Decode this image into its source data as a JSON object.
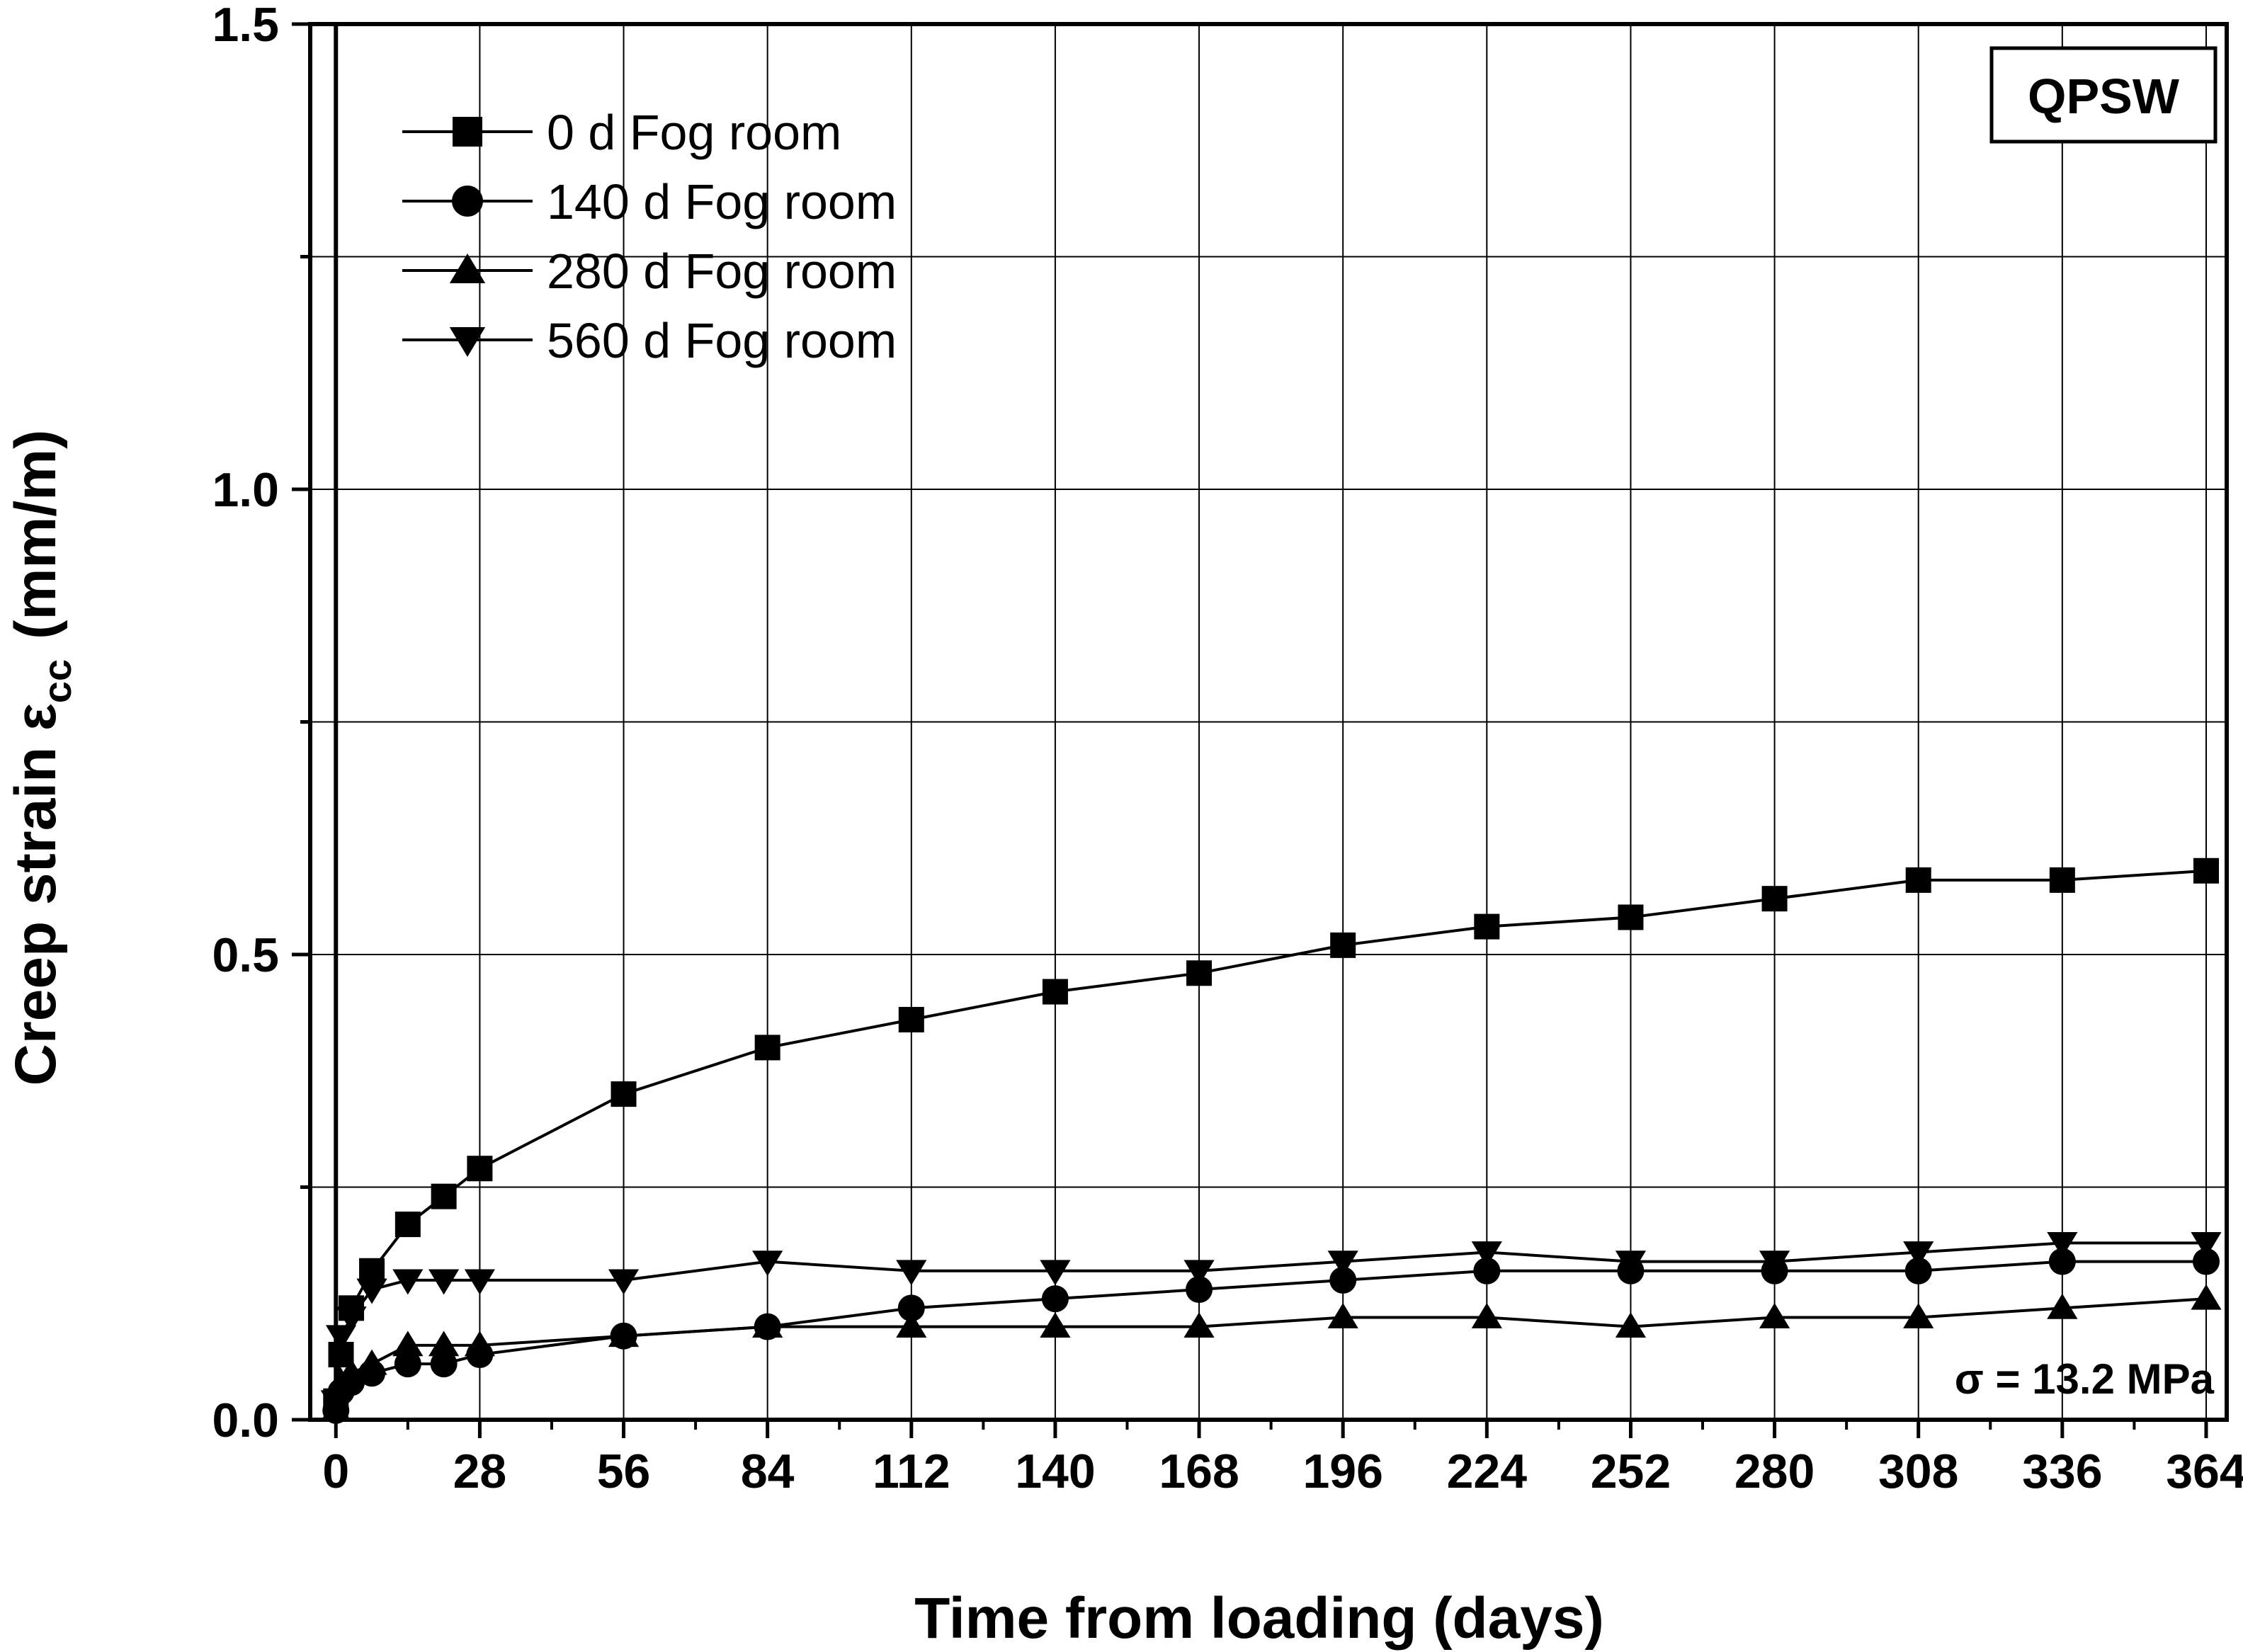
{
  "chart_data": {
    "type": "line",
    "xlabel": "Time from loading (days)",
    "ylabel": "Creep strain ε",
    "ylabel_sub": "cc",
    "ylabel_unit": "(mm/m)",
    "xlim": [
      -5,
      368
    ],
    "ylim": [
      0.0,
      1.5
    ],
    "x_ticks": [
      0,
      28,
      56,
      84,
      112,
      140,
      168,
      196,
      224,
      252,
      280,
      308,
      336,
      364
    ],
    "y_ticks": [
      0.0,
      0.5,
      1.0,
      1.5
    ],
    "y_tick_labels": [
      "0.0",
      "0.5",
      "1.0",
      "1.5"
    ],
    "grid": true,
    "legend_position": "top-left",
    "tag": "QPSW",
    "annotation": "σ = 13.2 MPa",
    "series": [
      {
        "name": "0 d Fog room",
        "marker": "square",
        "points": [
          [
            0,
            0.02
          ],
          [
            1,
            0.07
          ],
          [
            3,
            0.12
          ],
          [
            7,
            0.16
          ],
          [
            14,
            0.21
          ],
          [
            21,
            0.24
          ],
          [
            28,
            0.27
          ],
          [
            56,
            0.35
          ],
          [
            84,
            0.4
          ],
          [
            112,
            0.43
          ],
          [
            140,
            0.46
          ],
          [
            168,
            0.48
          ],
          [
            196,
            0.51
          ],
          [
            224,
            0.53
          ],
          [
            252,
            0.54
          ],
          [
            280,
            0.56
          ],
          [
            308,
            0.58
          ],
          [
            336,
            0.58
          ],
          [
            364,
            0.59
          ]
        ]
      },
      {
        "name": "140 d Fog room",
        "marker": "circle",
        "points": [
          [
            0,
            0.01
          ],
          [
            1,
            0.03
          ],
          [
            3,
            0.04
          ],
          [
            7,
            0.05
          ],
          [
            14,
            0.06
          ],
          [
            21,
            0.06
          ],
          [
            28,
            0.07
          ],
          [
            56,
            0.09
          ],
          [
            84,
            0.1
          ],
          [
            112,
            0.12
          ],
          [
            140,
            0.13
          ],
          [
            168,
            0.14
          ],
          [
            196,
            0.15
          ],
          [
            224,
            0.16
          ],
          [
            252,
            0.16
          ],
          [
            280,
            0.16
          ],
          [
            308,
            0.16
          ],
          [
            336,
            0.17
          ],
          [
            364,
            0.17
          ]
        ]
      },
      {
        "name": "280 d Fog room",
        "marker": "triangle-up",
        "points": [
          [
            0,
            0.01
          ],
          [
            1,
            0.04
          ],
          [
            3,
            0.05
          ],
          [
            7,
            0.06
          ],
          [
            14,
            0.08
          ],
          [
            21,
            0.08
          ],
          [
            28,
            0.08
          ],
          [
            56,
            0.09
          ],
          [
            84,
            0.1
          ],
          [
            112,
            0.1
          ],
          [
            140,
            0.1
          ],
          [
            168,
            0.1
          ],
          [
            196,
            0.11
          ],
          [
            224,
            0.11
          ],
          [
            252,
            0.1
          ],
          [
            280,
            0.11
          ],
          [
            308,
            0.11
          ],
          [
            336,
            0.12
          ],
          [
            364,
            0.13
          ]
        ]
      },
      {
        "name": "560 d Fog room",
        "marker": "triangle-down",
        "points": [
          [
            0,
            0.02
          ],
          [
            1,
            0.09
          ],
          [
            3,
            0.11
          ],
          [
            7,
            0.14
          ],
          [
            14,
            0.15
          ],
          [
            21,
            0.15
          ],
          [
            28,
            0.15
          ],
          [
            56,
            0.15
          ],
          [
            84,
            0.17
          ],
          [
            112,
            0.16
          ],
          [
            140,
            0.16
          ],
          [
            168,
            0.16
          ],
          [
            196,
            0.17
          ],
          [
            224,
            0.18
          ],
          [
            252,
            0.17
          ],
          [
            280,
            0.17
          ],
          [
            308,
            0.18
          ],
          [
            336,
            0.19
          ],
          [
            364,
            0.19
          ]
        ]
      }
    ]
  }
}
